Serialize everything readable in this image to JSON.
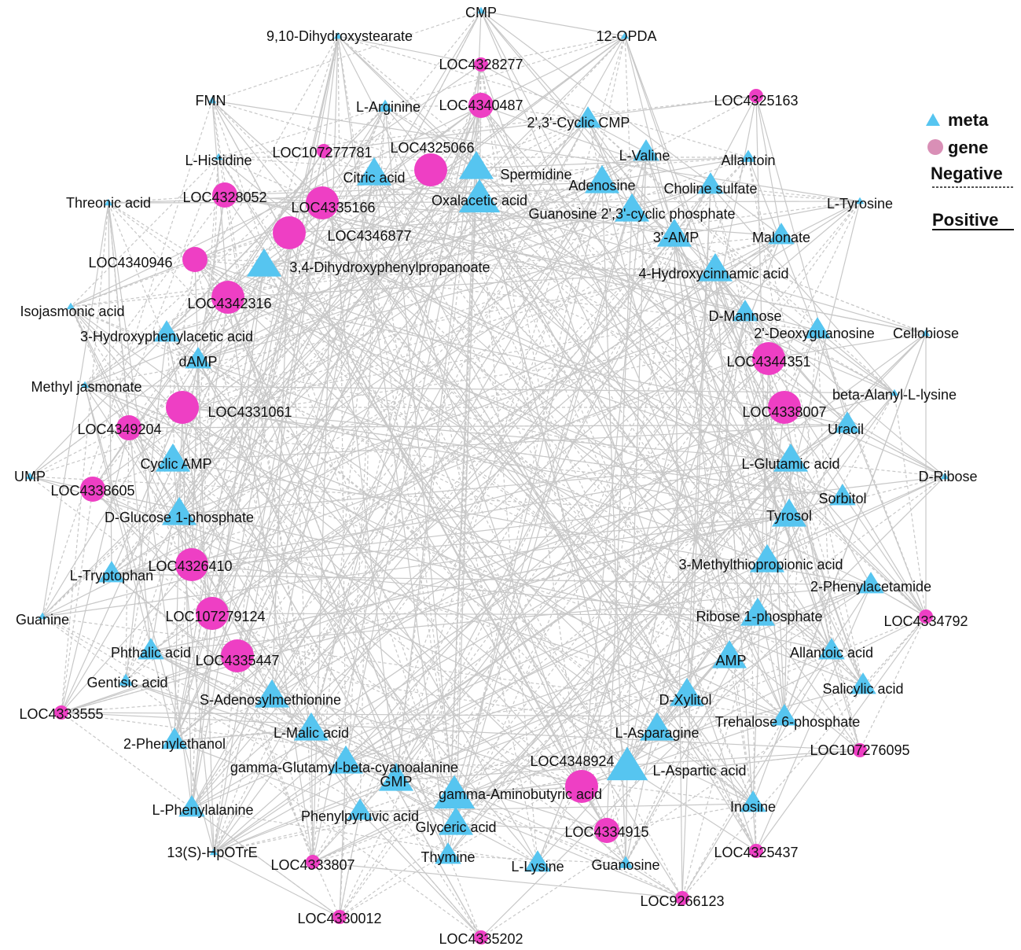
{
  "colors": {
    "meta": "#56c5f0",
    "gene": "#ee3fc4",
    "gene_legend": "#d98fb6",
    "edge": "#c8c8c8",
    "text": "#111111"
  },
  "legend": {
    "meta_label": "meta",
    "gene_label": "gene",
    "negative_label": "Negative",
    "positive_label": "Positive"
  },
  "nodes": [
    {
      "label": "CMP",
      "type": "meta",
      "size": "tiny"
    },
    {
      "label": "9,10-Dihydroxystearate",
      "type": "meta",
      "size": "tiny"
    },
    {
      "label": "12-OPDA",
      "type": "meta",
      "size": "tiny"
    },
    {
      "label": "LOC4328277",
      "type": "gene",
      "size": "small"
    },
    {
      "label": "FMN",
      "type": "meta",
      "size": "tiny"
    },
    {
      "label": "L-Arginine",
      "type": "meta",
      "size": "small"
    },
    {
      "label": "LOC4340487",
      "type": "gene",
      "size": "medium"
    },
    {
      "label": "LOC4325163",
      "type": "gene",
      "size": "small"
    },
    {
      "label": "2',3'-Cyclic CMP",
      "type": "meta",
      "size": "medium"
    },
    {
      "label": "LOC107277781",
      "type": "gene",
      "size": "small"
    },
    {
      "label": "LOC4325066",
      "type": "gene",
      "size": "large"
    },
    {
      "label": "L-Histidine",
      "type": "meta",
      "size": "tiny"
    },
    {
      "label": "Citric acid",
      "type": "meta",
      "size": "large"
    },
    {
      "label": "Spermidine",
      "type": "meta",
      "size": "large"
    },
    {
      "label": "L-Valine",
      "type": "meta",
      "size": "medium"
    },
    {
      "label": "Allantoin",
      "type": "meta",
      "size": "small"
    },
    {
      "label": "LOC4328052",
      "type": "gene",
      "size": "medium"
    },
    {
      "label": "Adenosine",
      "type": "meta",
      "size": "large"
    },
    {
      "label": "Choline sulfate",
      "type": "meta",
      "size": "medium"
    },
    {
      "label": "Threonic acid",
      "type": "meta",
      "size": "tiny"
    },
    {
      "label": "LOC4335166",
      "type": "gene",
      "size": "large"
    },
    {
      "label": "Oxalacetic acid",
      "type": "meta",
      "size": "xlarge"
    },
    {
      "label": "L-Tyrosine",
      "type": "meta",
      "size": "tiny"
    },
    {
      "label": "Guanosine 2',3'-cyclic phosphate",
      "type": "meta",
      "size": "large"
    },
    {
      "label": "LOC4346877",
      "type": "gene",
      "size": "large"
    },
    {
      "label": "3'-AMP",
      "type": "meta",
      "size": "large"
    },
    {
      "label": "Malonate",
      "type": "meta",
      "size": "medium"
    },
    {
      "label": "LOC4340946",
      "type": "gene",
      "size": "medium"
    },
    {
      "label": "3,4-Dihydroxyphenylpropanoate",
      "type": "meta",
      "size": "large"
    },
    {
      "label": "4-Hydroxycinnamic acid",
      "type": "meta",
      "size": "large"
    },
    {
      "label": "LOC4342316",
      "type": "gene",
      "size": "large"
    },
    {
      "label": "Isojasmonic acid",
      "type": "meta",
      "size": "tiny"
    },
    {
      "label": "D-Mannose",
      "type": "meta",
      "size": "medium"
    },
    {
      "label": "3-Hydroxyphenylacetic acid",
      "type": "meta",
      "size": "medium"
    },
    {
      "label": "2'-Deoxyguanosine",
      "type": "meta",
      "size": "medium"
    },
    {
      "label": "Cellobiose",
      "type": "meta",
      "size": "tiny"
    },
    {
      "label": "dAMP",
      "type": "meta",
      "size": "medium"
    },
    {
      "label": "LOC4344351",
      "type": "gene",
      "size": "large"
    },
    {
      "label": "Methyl jasmonate",
      "type": "meta",
      "size": "tiny"
    },
    {
      "label": "beta-Alanyl-L-lysine",
      "type": "meta",
      "size": "tiny"
    },
    {
      "label": "LOC4331061",
      "type": "gene",
      "size": "large"
    },
    {
      "label": "LOC4338007",
      "type": "gene",
      "size": "large"
    },
    {
      "label": "LOC4349204",
      "type": "gene",
      "size": "medium"
    },
    {
      "label": "Uracil",
      "type": "meta",
      "size": "medium"
    },
    {
      "label": "Cyclic AMP",
      "type": "meta",
      "size": "large"
    },
    {
      "label": "L-Glutamic acid",
      "type": "meta",
      "size": "large"
    },
    {
      "label": "UMP",
      "type": "meta",
      "size": "tiny"
    },
    {
      "label": "D-Ribose",
      "type": "meta",
      "size": "tiny"
    },
    {
      "label": "LOC4338605",
      "type": "gene",
      "size": "medium"
    },
    {
      "label": "Sorbitol",
      "type": "meta",
      "size": "medium"
    },
    {
      "label": "D-Glucose 1-phosphate",
      "type": "meta",
      "size": "large"
    },
    {
      "label": "Tyrosol",
      "type": "meta",
      "size": "large"
    },
    {
      "label": "LOC4326410",
      "type": "gene",
      "size": "large"
    },
    {
      "label": "L-Tryptophan",
      "type": "meta",
      "size": "medium"
    },
    {
      "label": "3-Methylthiopropionic acid",
      "type": "meta",
      "size": "large"
    },
    {
      "label": "2-Phenylacetamide",
      "type": "meta",
      "size": "medium"
    },
    {
      "label": "LOC107279124",
      "type": "gene",
      "size": "large"
    },
    {
      "label": "Guanine",
      "type": "meta",
      "size": "tiny"
    },
    {
      "label": "Ribose 1-phosphate",
      "type": "meta",
      "size": "large"
    },
    {
      "label": "LOC4334792",
      "type": "gene",
      "size": "small"
    },
    {
      "label": "Phthalic acid",
      "type": "meta",
      "size": "medium"
    },
    {
      "label": "LOC4335447",
      "type": "gene",
      "size": "large"
    },
    {
      "label": "AMP",
      "type": "meta",
      "size": "large"
    },
    {
      "label": "Allantoic acid",
      "type": "meta",
      "size": "medium"
    },
    {
      "label": "Gentisic acid",
      "type": "meta",
      "size": "small"
    },
    {
      "label": "Salicylic acid",
      "type": "meta",
      "size": "medium"
    },
    {
      "label": "LOC4333555",
      "type": "gene",
      "size": "small"
    },
    {
      "label": "S-Adenosylmethionine",
      "type": "meta",
      "size": "large"
    },
    {
      "label": "D-Xylitol",
      "type": "meta",
      "size": "large"
    },
    {
      "label": "L-Malic acid",
      "type": "meta",
      "size": "large"
    },
    {
      "label": "Trehalose 6-phosphate",
      "type": "meta",
      "size": "medium"
    },
    {
      "label": "2-Phenylethanol",
      "type": "meta",
      "size": "medium"
    },
    {
      "label": "L-Asparagine",
      "type": "meta",
      "size": "large"
    },
    {
      "label": "LOC107276095",
      "type": "gene",
      "size": "small"
    },
    {
      "label": "gamma-Glutamyl-beta-cyanoalanine",
      "type": "meta",
      "size": "large"
    },
    {
      "label": "LOC4348924",
      "type": "gene",
      "size": "large"
    },
    {
      "label": "L-Aspartic acid",
      "type": "meta",
      "size": "xlarge"
    },
    {
      "label": "GMP",
      "type": "meta",
      "size": "large"
    },
    {
      "label": "gamma-Aminobutyric acid",
      "type": "meta",
      "size": "xlarge"
    },
    {
      "label": "L-Phenylalanine",
      "type": "meta",
      "size": "medium"
    },
    {
      "label": "Inosine",
      "type": "meta",
      "size": "medium"
    },
    {
      "label": "Phenylpyruvic acid",
      "type": "meta",
      "size": "medium"
    },
    {
      "label": "Glyceric acid",
      "type": "meta",
      "size": "large"
    },
    {
      "label": "LOC4334915",
      "type": "gene",
      "size": "medium"
    },
    {
      "label": "13(S)-HpOTrE",
      "type": "meta",
      "size": "tiny"
    },
    {
      "label": "Thymine",
      "type": "meta",
      "size": "medium"
    },
    {
      "label": "L-Lysine",
      "type": "meta",
      "size": "medium"
    },
    {
      "label": "Guanosine",
      "type": "meta",
      "size": "small"
    },
    {
      "label": "LOC4325437",
      "type": "gene",
      "size": "small"
    },
    {
      "label": "LOC4333807",
      "type": "gene",
      "size": "small"
    },
    {
      "label": "LOC9266123",
      "type": "gene",
      "size": "small"
    },
    {
      "label": "LOC4330012",
      "type": "gene",
      "size": "small"
    },
    {
      "label": "LOC4335202",
      "type": "gene",
      "size": "small"
    }
  ]
}
